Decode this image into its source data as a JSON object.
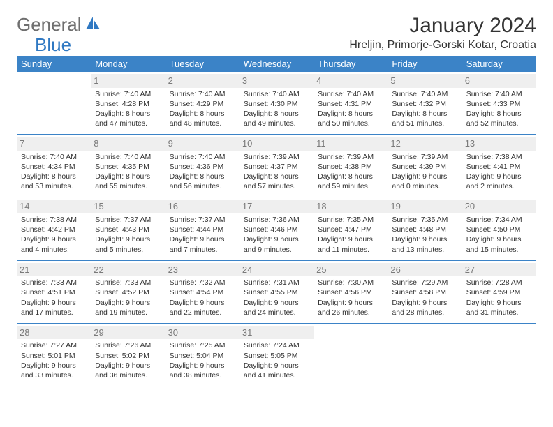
{
  "logo": {
    "part1": "General",
    "part2": "Blue"
  },
  "title": "January 2024",
  "location": "Hreljin, Primorje-Gorski Kotar, Croatia",
  "header_bg": "#3b83c7",
  "header_text_color": "#ffffff",
  "daynum_bg": "#efefef",
  "daynum_color": "#7a7a7a",
  "divider_color": "#3b83c7",
  "weekdays": [
    "Sunday",
    "Monday",
    "Tuesday",
    "Wednesday",
    "Thursday",
    "Friday",
    "Saturday"
  ],
  "weeks": [
    [
      null,
      {
        "n": "1",
        "sr": "7:40 AM",
        "ss": "4:28 PM",
        "dl": "Daylight: 8 hours and 47 minutes."
      },
      {
        "n": "2",
        "sr": "7:40 AM",
        "ss": "4:29 PM",
        "dl": "Daylight: 8 hours and 48 minutes."
      },
      {
        "n": "3",
        "sr": "7:40 AM",
        "ss": "4:30 PM",
        "dl": "Daylight: 8 hours and 49 minutes."
      },
      {
        "n": "4",
        "sr": "7:40 AM",
        "ss": "4:31 PM",
        "dl": "Daylight: 8 hours and 50 minutes."
      },
      {
        "n": "5",
        "sr": "7:40 AM",
        "ss": "4:32 PM",
        "dl": "Daylight: 8 hours and 51 minutes."
      },
      {
        "n": "6",
        "sr": "7:40 AM",
        "ss": "4:33 PM",
        "dl": "Daylight: 8 hours and 52 minutes."
      }
    ],
    [
      {
        "n": "7",
        "sr": "7:40 AM",
        "ss": "4:34 PM",
        "dl": "Daylight: 8 hours and 53 minutes."
      },
      {
        "n": "8",
        "sr": "7:40 AM",
        "ss": "4:35 PM",
        "dl": "Daylight: 8 hours and 55 minutes."
      },
      {
        "n": "9",
        "sr": "7:40 AM",
        "ss": "4:36 PM",
        "dl": "Daylight: 8 hours and 56 minutes."
      },
      {
        "n": "10",
        "sr": "7:39 AM",
        "ss": "4:37 PM",
        "dl": "Daylight: 8 hours and 57 minutes."
      },
      {
        "n": "11",
        "sr": "7:39 AM",
        "ss": "4:38 PM",
        "dl": "Daylight: 8 hours and 59 minutes."
      },
      {
        "n": "12",
        "sr": "7:39 AM",
        "ss": "4:39 PM",
        "dl": "Daylight: 9 hours and 0 minutes."
      },
      {
        "n": "13",
        "sr": "7:38 AM",
        "ss": "4:41 PM",
        "dl": "Daylight: 9 hours and 2 minutes."
      }
    ],
    [
      {
        "n": "14",
        "sr": "7:38 AM",
        "ss": "4:42 PM",
        "dl": "Daylight: 9 hours and 4 minutes."
      },
      {
        "n": "15",
        "sr": "7:37 AM",
        "ss": "4:43 PM",
        "dl": "Daylight: 9 hours and 5 minutes."
      },
      {
        "n": "16",
        "sr": "7:37 AM",
        "ss": "4:44 PM",
        "dl": "Daylight: 9 hours and 7 minutes."
      },
      {
        "n": "17",
        "sr": "7:36 AM",
        "ss": "4:46 PM",
        "dl": "Daylight: 9 hours and 9 minutes."
      },
      {
        "n": "18",
        "sr": "7:35 AM",
        "ss": "4:47 PM",
        "dl": "Daylight: 9 hours and 11 minutes."
      },
      {
        "n": "19",
        "sr": "7:35 AM",
        "ss": "4:48 PM",
        "dl": "Daylight: 9 hours and 13 minutes."
      },
      {
        "n": "20",
        "sr": "7:34 AM",
        "ss": "4:50 PM",
        "dl": "Daylight: 9 hours and 15 minutes."
      }
    ],
    [
      {
        "n": "21",
        "sr": "7:33 AM",
        "ss": "4:51 PM",
        "dl": "Daylight: 9 hours and 17 minutes."
      },
      {
        "n": "22",
        "sr": "7:33 AM",
        "ss": "4:52 PM",
        "dl": "Daylight: 9 hours and 19 minutes."
      },
      {
        "n": "23",
        "sr": "7:32 AM",
        "ss": "4:54 PM",
        "dl": "Daylight: 9 hours and 22 minutes."
      },
      {
        "n": "24",
        "sr": "7:31 AM",
        "ss": "4:55 PM",
        "dl": "Daylight: 9 hours and 24 minutes."
      },
      {
        "n": "25",
        "sr": "7:30 AM",
        "ss": "4:56 PM",
        "dl": "Daylight: 9 hours and 26 minutes."
      },
      {
        "n": "26",
        "sr": "7:29 AM",
        "ss": "4:58 PM",
        "dl": "Daylight: 9 hours and 28 minutes."
      },
      {
        "n": "27",
        "sr": "7:28 AM",
        "ss": "4:59 PM",
        "dl": "Daylight: 9 hours and 31 minutes."
      }
    ],
    [
      {
        "n": "28",
        "sr": "7:27 AM",
        "ss": "5:01 PM",
        "dl": "Daylight: 9 hours and 33 minutes."
      },
      {
        "n": "29",
        "sr": "7:26 AM",
        "ss": "5:02 PM",
        "dl": "Daylight: 9 hours and 36 minutes."
      },
      {
        "n": "30",
        "sr": "7:25 AM",
        "ss": "5:04 PM",
        "dl": "Daylight: 9 hours and 38 minutes."
      },
      {
        "n": "31",
        "sr": "7:24 AM",
        "ss": "5:05 PM",
        "dl": "Daylight: 9 hours and 41 minutes."
      },
      null,
      null,
      null
    ]
  ]
}
